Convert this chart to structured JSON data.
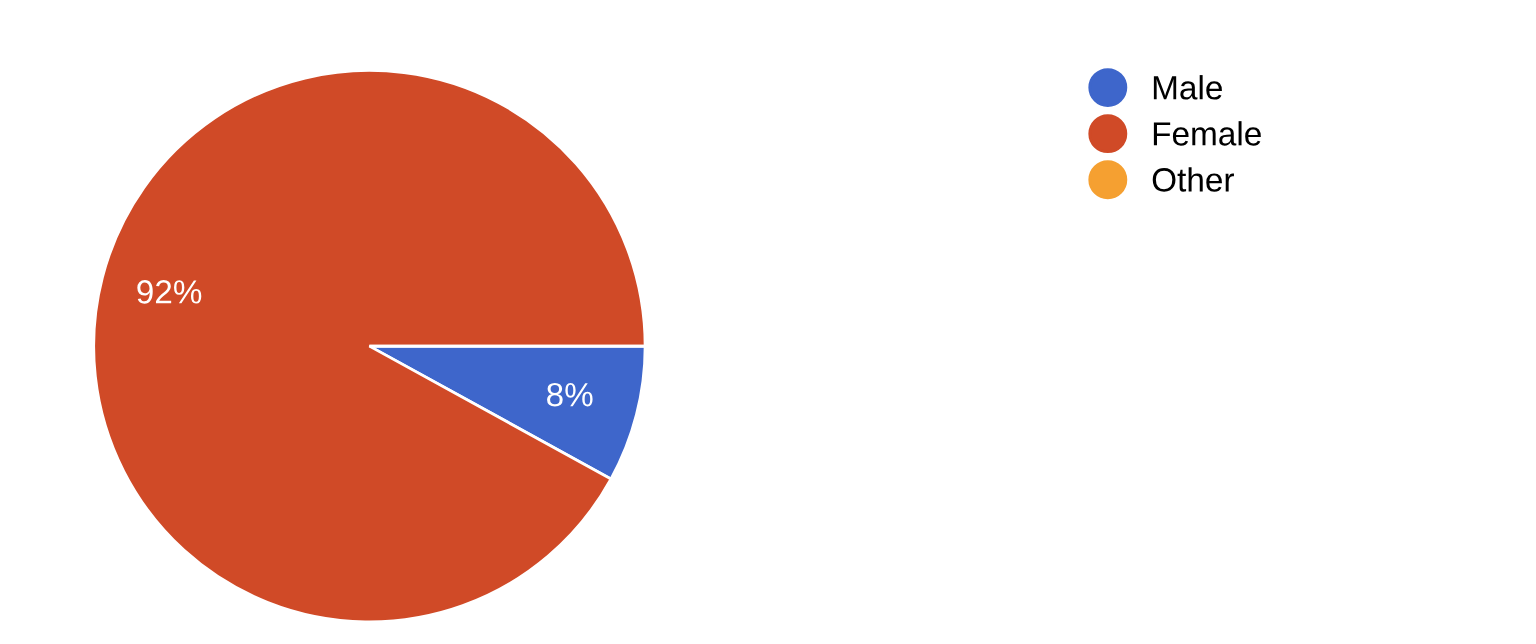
{
  "chart_data": {
    "type": "pie",
    "categories": [
      "Male",
      "Female",
      "Other"
    ],
    "values": [
      8,
      92,
      0
    ],
    "colors": [
      "#3e66cb",
      "#d04a27",
      "#f5a031"
    ],
    "value_labels": [
      "8%",
      "92%",
      null
    ],
    "legend": "top right"
  }
}
